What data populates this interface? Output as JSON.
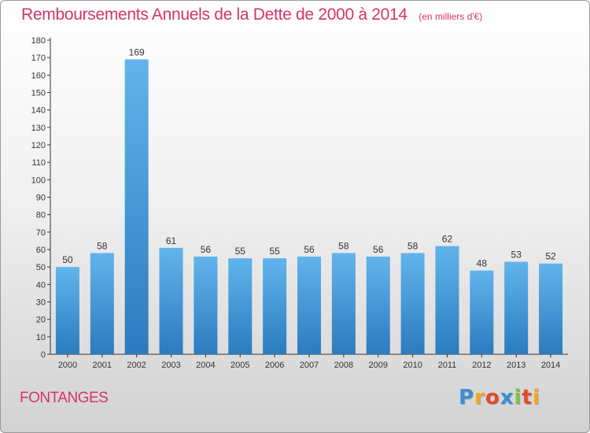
{
  "title": {
    "main": "Remboursements Annuels de la Dette de 2000 à 2014",
    "unit": "(en milliers d'€)"
  },
  "place": "FONTANGES",
  "logo": {
    "text": "Proxiti",
    "letters": [
      "P",
      "r",
      "o",
      "x",
      "i",
      "t",
      "i"
    ],
    "colors": [
      "#3a8fd6",
      "#f0a81e",
      "#e44b2c",
      "#3a8fd6",
      "#7fc241",
      "#e44b2c",
      "#f0a81e"
    ]
  },
  "colors": {
    "accent": "#d6336c",
    "bar_light": "#62b4ec",
    "bar_dark": "#2b7bbf"
  },
  "chart_data": {
    "type": "bar",
    "categories": [
      "2000",
      "2001",
      "2002",
      "2003",
      "2004",
      "2005",
      "2006",
      "2007",
      "2008",
      "2009",
      "2010",
      "2011",
      "2012",
      "2013",
      "2014"
    ],
    "values": [
      50,
      58,
      169,
      61,
      56,
      55,
      55,
      56,
      58,
      56,
      58,
      62,
      48,
      53,
      52
    ],
    "yticks": [
      0,
      10,
      20,
      30,
      40,
      50,
      60,
      70,
      80,
      90,
      100,
      110,
      120,
      130,
      140,
      150,
      160,
      170,
      180
    ],
    "ylim": [
      0,
      180
    ],
    "grid": false,
    "legend": "none"
  }
}
